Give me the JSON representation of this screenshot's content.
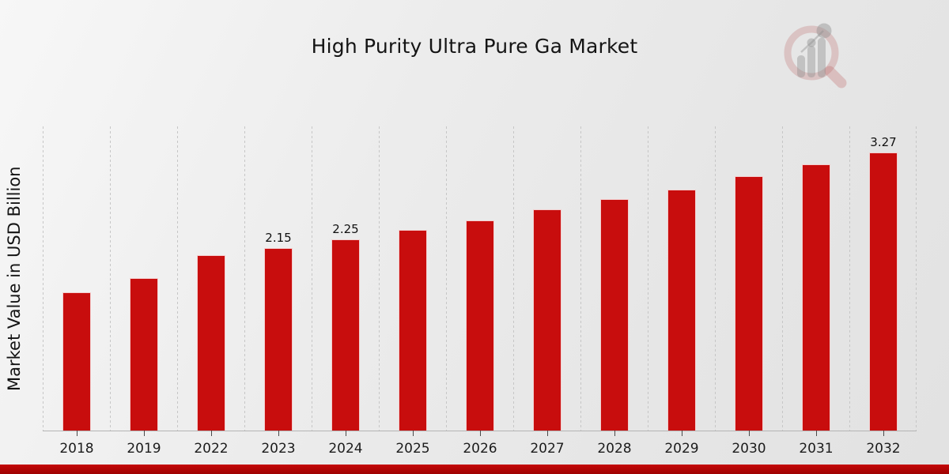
{
  "chart_data": {
    "type": "bar",
    "title": "High Purity Ultra Pure Ga Market",
    "xlabel": "",
    "ylabel": "Market Value in USD Billion",
    "categories": [
      "2018",
      "2019",
      "2022",
      "2023",
      "2024",
      "2025",
      "2026",
      "2027",
      "2028",
      "2029",
      "2030",
      "2031",
      "2032"
    ],
    "values": [
      1.63,
      1.79,
      2.06,
      2.15,
      2.25,
      2.36,
      2.47,
      2.6,
      2.72,
      2.84,
      2.99,
      3.13,
      3.27
    ],
    "data_labels": [
      "",
      "",
      "",
      "2.15",
      "2.25",
      "",
      "",
      "",
      "",
      "",
      "",
      "",
      "3.27"
    ],
    "ylim": [
      0,
      3.58
    ],
    "grid": "vertical-dotted",
    "legend": "none",
    "bar_color": "#c80d0d",
    "bar_edge_color": "#ffffff",
    "gridline_color": "#c6c6c6",
    "axis_line_color": "#b4b4b4",
    "text_color": "#141414"
  },
  "footer": {
    "accent_top": "#c50808",
    "accent_bottom": "#9e0202"
  },
  "watermark": {
    "icon": "magnifier-bar-chart-icon",
    "ring_color": "rgba(185,90,90,0.25)",
    "bars_color": "rgba(140,140,140,0.40)"
  }
}
